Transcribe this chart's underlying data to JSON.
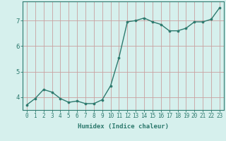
{
  "x": [
    0,
    1,
    2,
    3,
    4,
    5,
    6,
    7,
    8,
    9,
    10,
    11,
    12,
    13,
    14,
    15,
    16,
    17,
    18,
    19,
    20,
    21,
    22,
    23
  ],
  "y": [
    3.7,
    3.95,
    4.3,
    4.2,
    3.95,
    3.8,
    3.85,
    3.75,
    3.75,
    3.9,
    4.45,
    5.55,
    6.95,
    7.0,
    7.1,
    6.95,
    6.85,
    6.6,
    6.6,
    6.7,
    6.95,
    6.95,
    7.05,
    7.5
  ],
  "line_color": "#2d7a6e",
  "marker": "o",
  "markersize": 2.2,
  "linewidth": 1.0,
  "xlabel": "Humidex (Indice chaleur)",
  "ylabel": "",
  "xlim": [
    -0.5,
    23.5
  ],
  "ylim": [
    3.5,
    7.75
  ],
  "yticks": [
    4,
    5,
    6,
    7
  ],
  "xtick_labels": [
    "0",
    "1",
    "2",
    "3",
    "4",
    "5",
    "6",
    "7",
    "8",
    "9",
    "10",
    "11",
    "12",
    "13",
    "14",
    "15",
    "16",
    "17",
    "18",
    "19",
    "20",
    "21",
    "22",
    "23"
  ],
  "bg_color": "#d6f0ed",
  "grid_color": "#c8a0a0",
  "axis_color": "#2d7a6e",
  "tick_color": "#2d7a6e",
  "label_fontsize": 6.5,
  "tick_fontsize": 5.5
}
